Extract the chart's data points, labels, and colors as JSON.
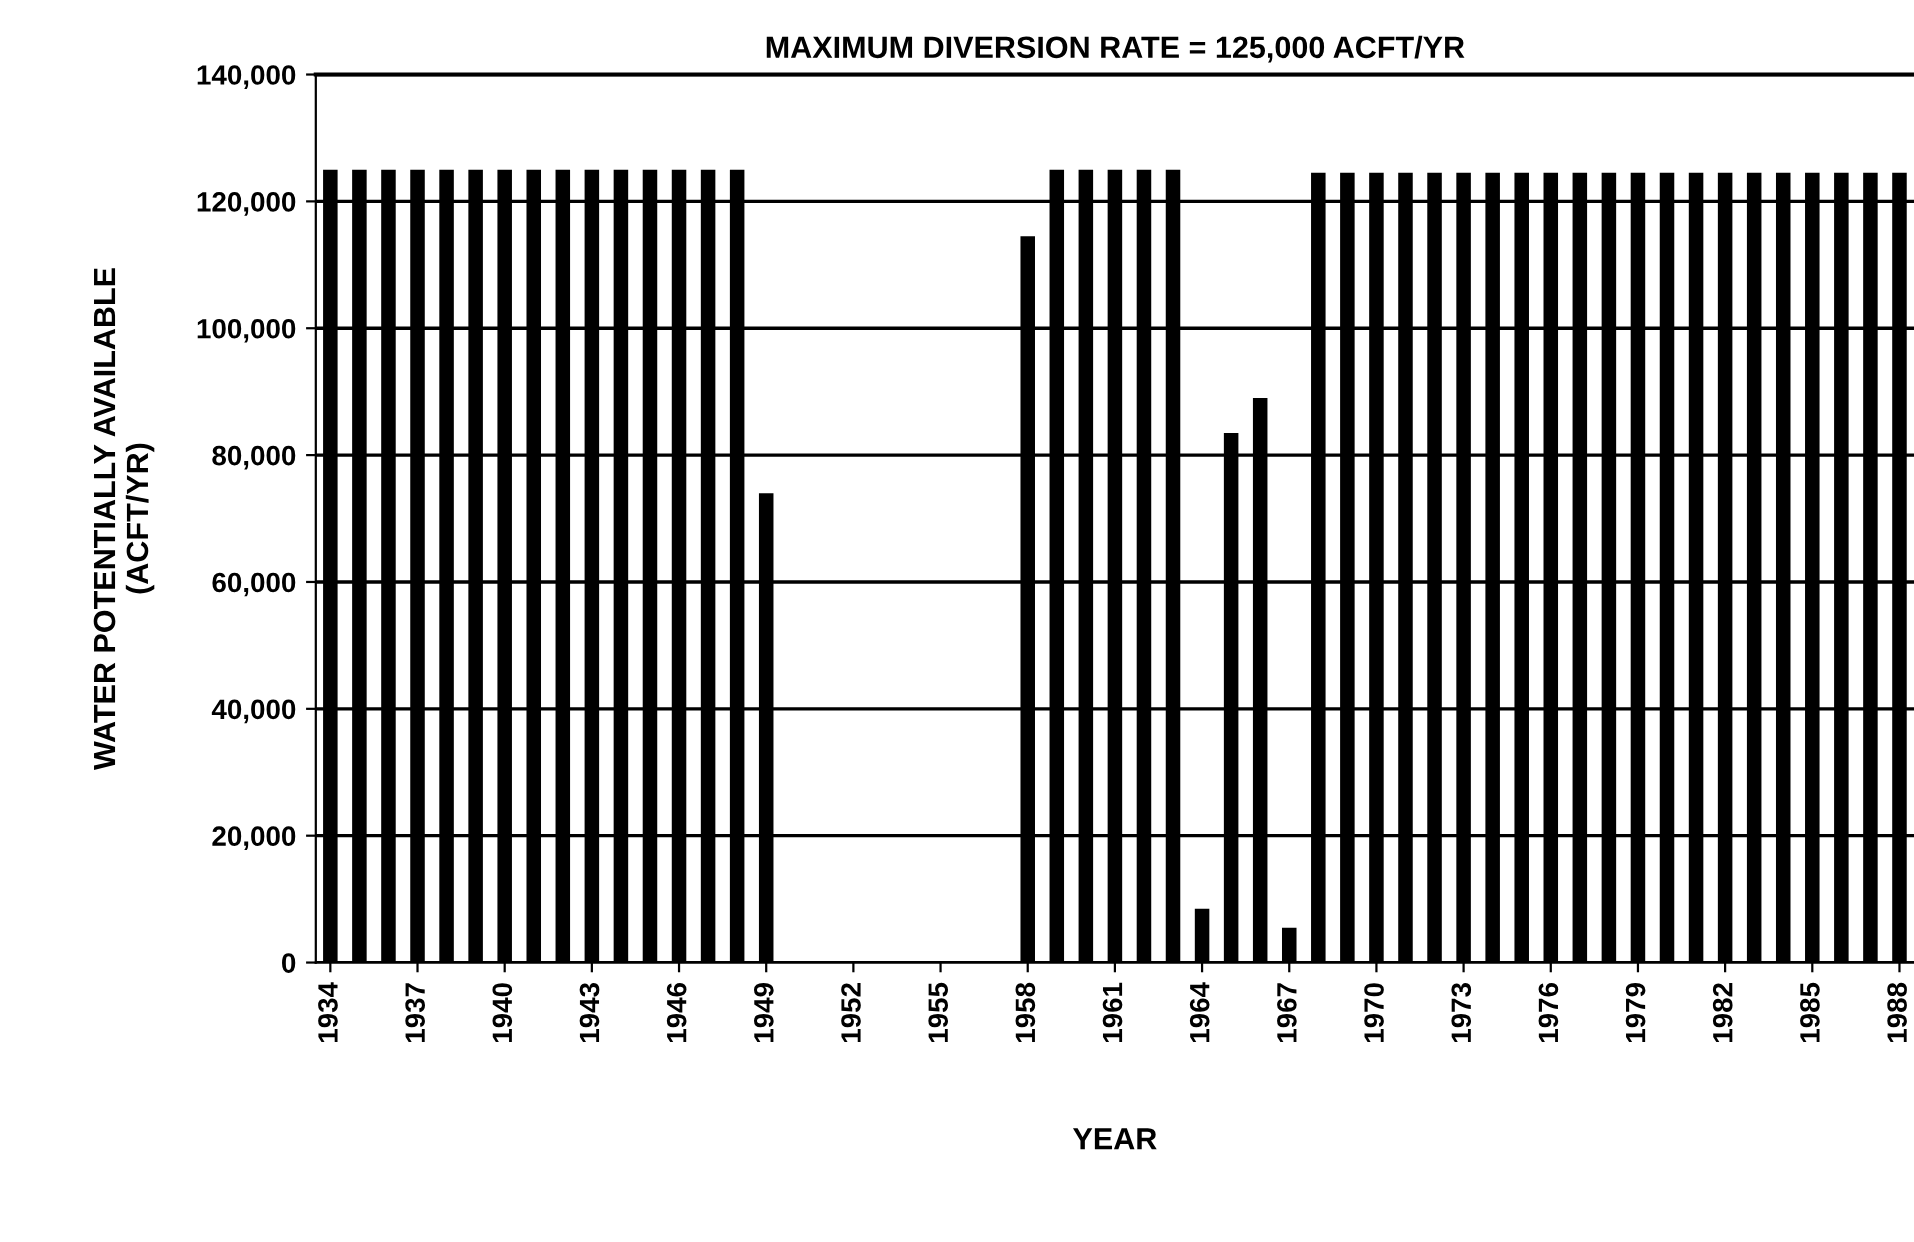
{
  "chart_data": {
    "type": "bar",
    "title": "MAXIMUM DIVERSION RATE = 125,000 ACFT/YR",
    "xlabel": "YEAR",
    "ylabel": "WATER POTENTIALLY AVAILABLE\n(ACFT/YR)",
    "categories": [
      "1934",
      null,
      null,
      "1937",
      null,
      null,
      "1940",
      null,
      null,
      "1943",
      null,
      null,
      "1946",
      null,
      null,
      "1949",
      null,
      null,
      "1952",
      null,
      null,
      "1955",
      null,
      null,
      "1958",
      null,
      null,
      "1961",
      null,
      null,
      "1964",
      null,
      null,
      "1967",
      null,
      null,
      "1970",
      null,
      null,
      "1973",
      null,
      null,
      "1976",
      null,
      null,
      "1979",
      null,
      null,
      "1982",
      null,
      null,
      "1985",
      null,
      null,
      "1988"
    ],
    "values": [
      125000,
      125000,
      125000,
      125000,
      125000,
      125000,
      125000,
      125000,
      125000,
      125000,
      125000,
      125000,
      125000,
      125000,
      125000,
      74000,
      0,
      0,
      0,
      0,
      0,
      0,
      0,
      0,
      114500,
      125000,
      125000,
      125000,
      125000,
      125000,
      8500,
      83500,
      89000,
      5500,
      124500,
      124500,
      124500,
      124500,
      124500,
      124500,
      124500,
      124500,
      124500,
      124500,
      124500,
      124500,
      124500,
      124500,
      124500,
      124500,
      124500,
      124500,
      124500,
      124500,
      124500
    ],
    "color": "#000000",
    "ylim": [
      0,
      140000
    ],
    "yticks": [
      {
        "value": 0,
        "label": "0"
      },
      {
        "value": 20000,
        "label": "20,000"
      },
      {
        "value": 40000,
        "label": "40,000"
      },
      {
        "value": 60000,
        "label": "60,000"
      },
      {
        "value": 80000,
        "label": "80,000"
      },
      {
        "value": 100000,
        "label": "100,000"
      },
      {
        "value": 120000,
        "label": "120,000"
      },
      {
        "value": 140000,
        "label": "140,000"
      }
    ],
    "grid": "y",
    "legend": false
  }
}
